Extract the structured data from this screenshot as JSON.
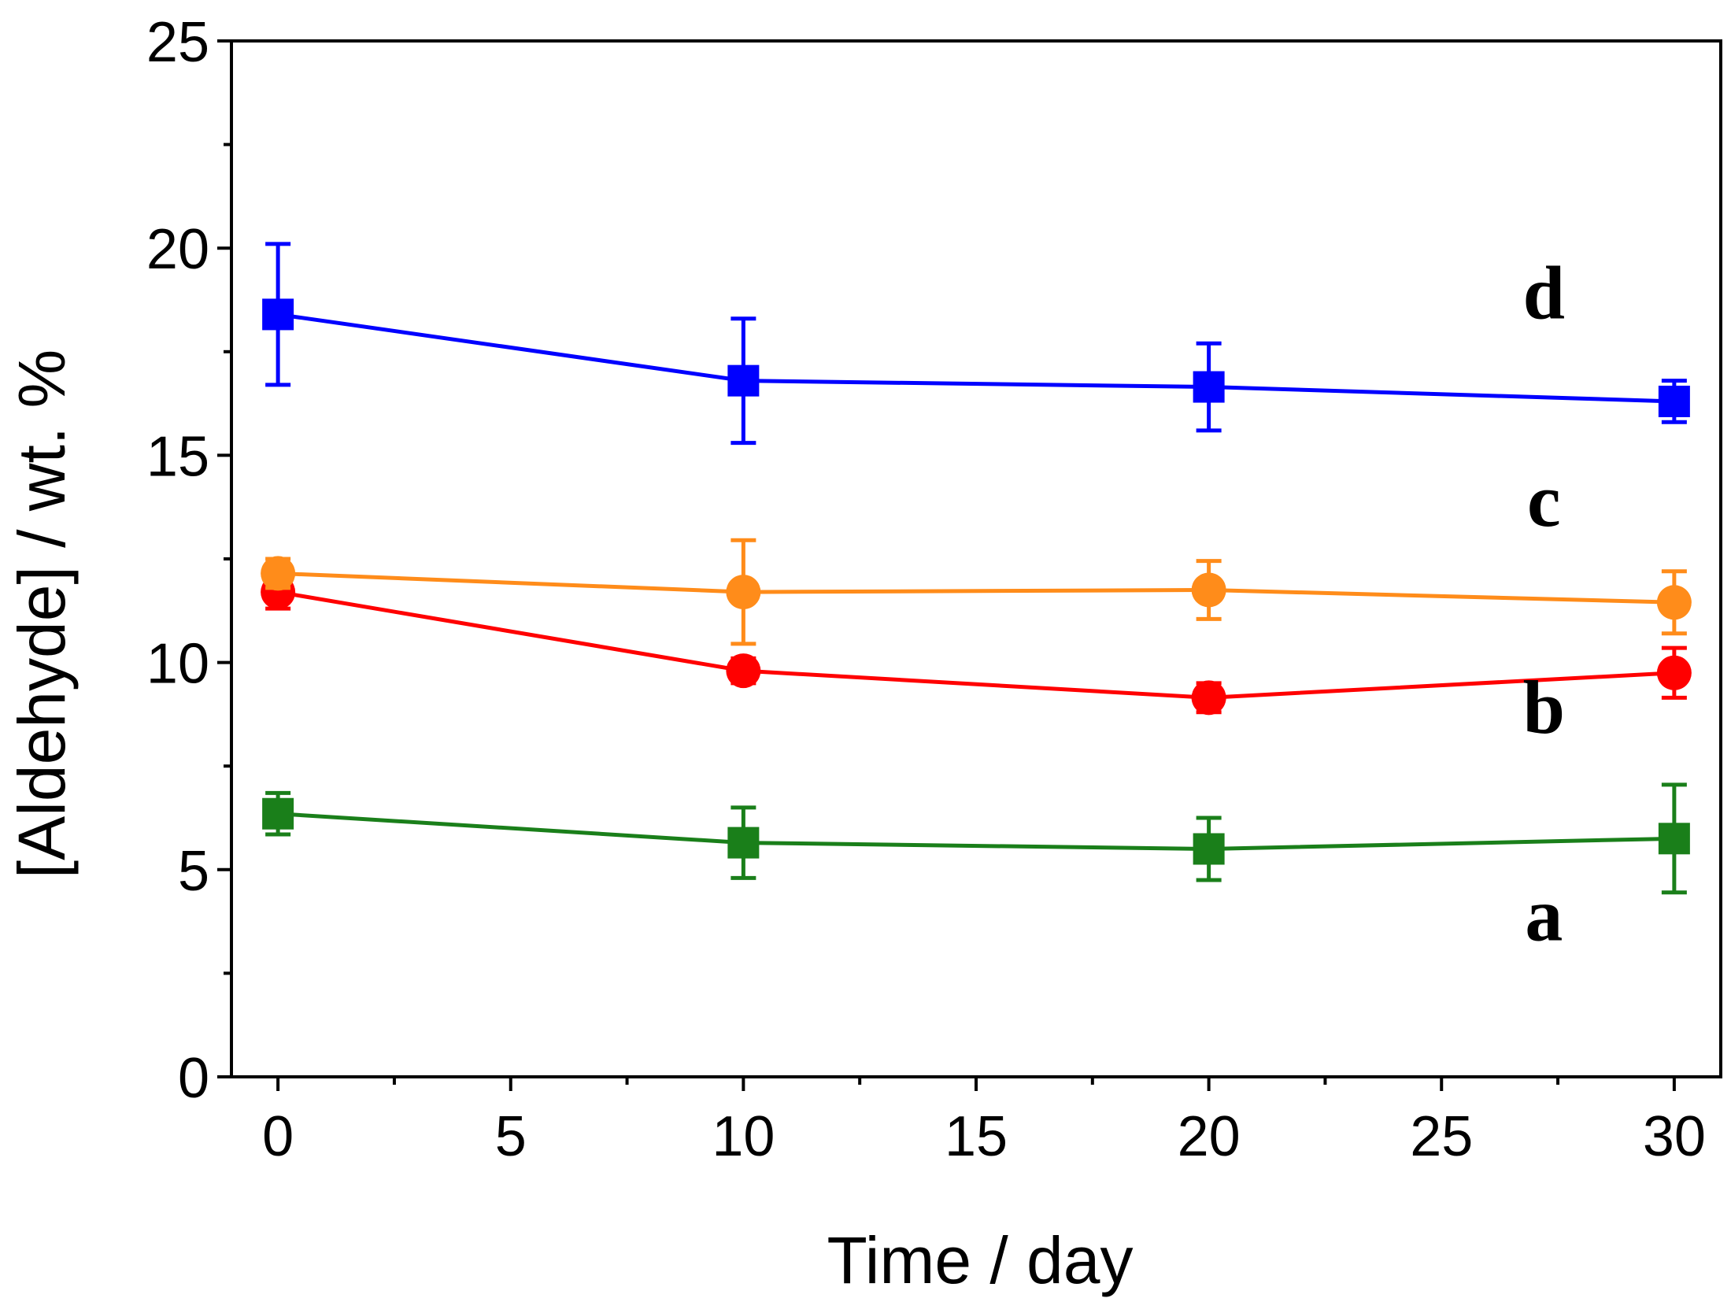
{
  "chart_data": {
    "type": "line",
    "title": "",
    "xlabel": "Time / day",
    "ylabel": "[Aldehyde] / wt. %",
    "xlim": [
      -1,
      31
    ],
    "ylim": [
      0,
      25
    ],
    "xticks": [
      0,
      5,
      10,
      15,
      20,
      25,
      30
    ],
    "yticks": [
      0,
      5,
      10,
      15,
      20,
      25
    ],
    "xtick_labels": [
      "0",
      "5",
      "10",
      "15",
      "20",
      "25",
      "30"
    ],
    "ytick_labels": [
      "0",
      "5",
      "10",
      "15",
      "20",
      "25"
    ],
    "x": [
      0,
      10,
      20,
      30
    ],
    "series": [
      {
        "name": "a",
        "label": "a",
        "color": "#1a7f1a",
        "marker": "square",
        "values": [
          6.35,
          5.65,
          5.5,
          5.75
        ],
        "errors": [
          0.5,
          0.85,
          0.75,
          1.3
        ],
        "label_y": 3.3
      },
      {
        "name": "b",
        "label": "b",
        "color": "#ff0000",
        "marker": "circle",
        "values": [
          11.7,
          9.8,
          9.15,
          9.75
        ],
        "errors": [
          0.4,
          0.3,
          0.35,
          0.6
        ],
        "label_y": 8.3
      },
      {
        "name": "c",
        "label": "c",
        "color": "#ff8c1a",
        "marker": "circle",
        "values": [
          12.15,
          11.7,
          11.75,
          11.45
        ],
        "errors": [
          0.35,
          1.25,
          0.7,
          0.75
        ],
        "label_y": 13.3
      },
      {
        "name": "d",
        "label": "d",
        "color": "#0000ff",
        "marker": "square",
        "values": [
          18.4,
          16.8,
          16.65,
          16.3
        ],
        "errors": [
          1.7,
          1.5,
          1.05,
          0.5
        ],
        "label_y": 18.3
      }
    ],
    "label_x": 27.2,
    "grid": false,
    "legend": "none"
  }
}
